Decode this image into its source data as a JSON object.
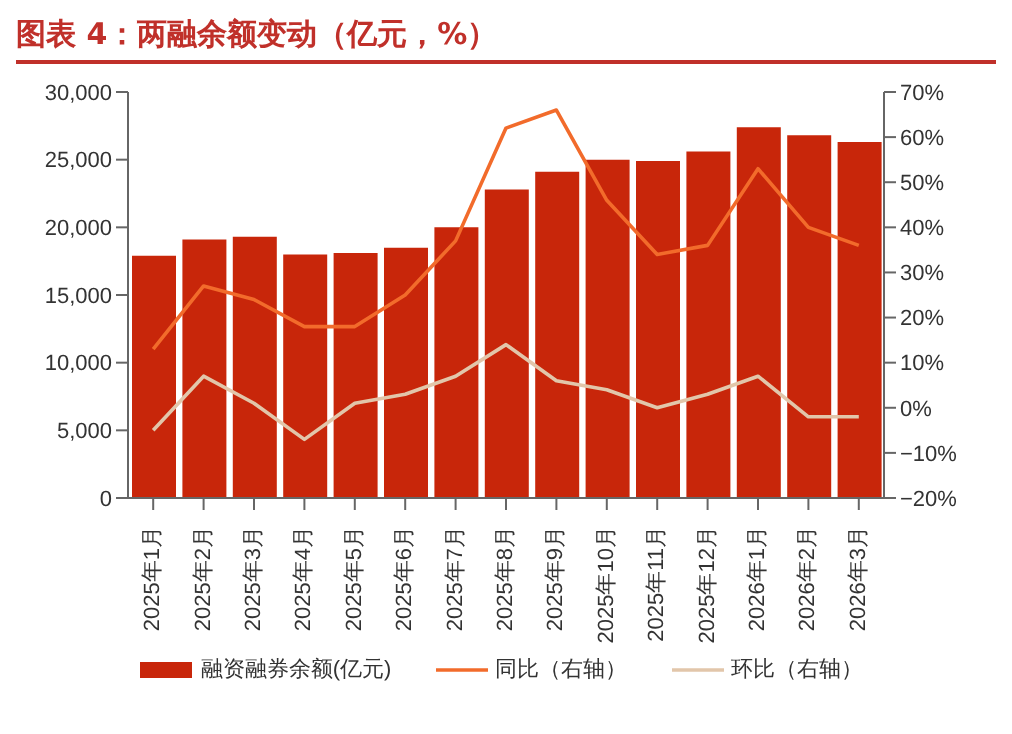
{
  "chart_data": {
    "type": "bar",
    "title": "图表 4：两融余额变动（亿元，%）",
    "categories": [
      "2025年1月",
      "2025年2月",
      "2025年3月",
      "2025年4月",
      "2025年5月",
      "2025年6月",
      "2025年7月",
      "2025年8月",
      "2025年9月",
      "2025年10月",
      "2025年11月",
      "2025年12月",
      "2026年1月",
      "2026年2月",
      "2026年3月"
    ],
    "series": [
      {
        "name": "融资融券余额(亿元)",
        "type": "bar",
        "color": "#c8260a",
        "values": [
          17900,
          19100,
          19300,
          18000,
          18100,
          18500,
          20000,
          22800,
          24100,
          25000,
          24900,
          25600,
          27400,
          26800,
          26300
        ]
      },
      {
        "name": "同比（右轴）",
        "type": "line",
        "axis": "y2",
        "color": "#f26b2b",
        "values": [
          13,
          27,
          24,
          18,
          18,
          25,
          37,
          62,
          66,
          46,
          34,
          36,
          53,
          40,
          36
        ]
      },
      {
        "name": "环比（右轴）",
        "type": "line",
        "axis": "y2",
        "color": "#e2c6aa",
        "values": [
          -5,
          7,
          1,
          -7,
          1,
          3,
          7,
          14,
          6,
          4,
          0,
          3,
          7,
          -2,
          -2
        ]
      }
    ],
    "ylim": [
      0,
      30000
    ],
    "yticks": [
      {
        "value": 0,
        "label": "0"
      },
      {
        "value": 5000,
        "label": "5,000"
      },
      {
        "value": 10000,
        "label": "10,000"
      },
      {
        "value": 15000,
        "label": "15,000"
      },
      {
        "value": 20000,
        "label": "20,000"
      },
      {
        "value": 25000,
        "label": "25,000"
      },
      {
        "value": 30000,
        "label": "30,000"
      }
    ],
    "y2lim": [
      -20,
      70
    ],
    "y2ticks": [
      {
        "value": -20,
        "label": "−20%"
      },
      {
        "value": -10,
        "label": "−10%"
      },
      {
        "value": 0,
        "label": "0%"
      },
      {
        "value": 10,
        "label": "10%"
      },
      {
        "value": 20,
        "label": "20%"
      },
      {
        "value": 30,
        "label": "30%"
      },
      {
        "value": 40,
        "label": "40%"
      },
      {
        "value": 50,
        "label": "50%"
      },
      {
        "value": 60,
        "label": "60%"
      },
      {
        "value": 70,
        "label": "70%"
      }
    ],
    "grid": false,
    "legend": "bottom",
    "marker": "none",
    "line_style": "solid"
  }
}
